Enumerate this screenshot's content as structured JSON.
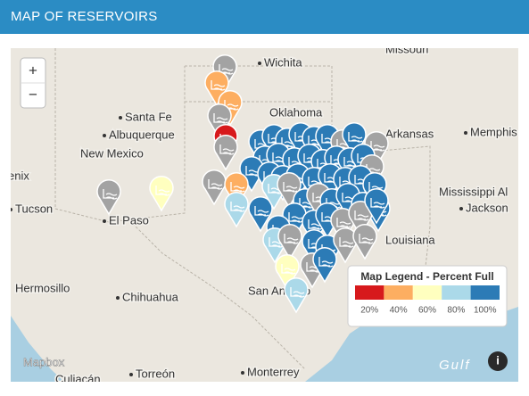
{
  "header": {
    "title": "MAP OF RESERVOIRS"
  },
  "map": {
    "labels": [
      "Missouri",
      "Wichita",
      "Oklahoma",
      "Santa Fe",
      "Albuquerque",
      "New Mexico",
      "Arkansas",
      "Memphis",
      "enix",
      "Tucson",
      "El Paso",
      "Mississippi Al",
      "Jackson",
      "Louisiana",
      "Hermosillo",
      "Chihuahua",
      "San Antonio",
      "Torreón",
      "Monterrey",
      "Culiacán",
      "Gulf"
    ],
    "zoom_in": "+",
    "zoom_out": "−",
    "attribution": "Mapbox",
    "info": "i"
  },
  "legend": {
    "title": "Map Legend - Percent Full",
    "stops": [
      {
        "label": "20%",
        "color": "#d7191c"
      },
      {
        "label": "40%",
        "color": "#fdae61"
      },
      {
        "label": "60%",
        "color": "#ffffbf"
      },
      {
        "label": "80%",
        "color": "#abd9e9"
      },
      {
        "label": "100%",
        "color": "#2c7bb6"
      }
    ]
  }
}
